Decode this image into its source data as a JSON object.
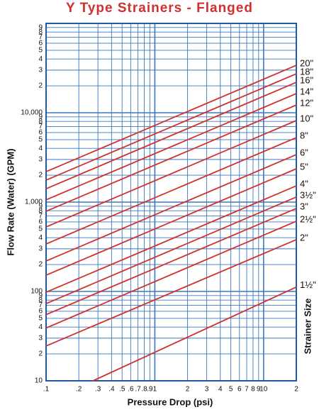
{
  "chart_data": {
    "type": "line",
    "title": "Y Type Strainers - Flanged",
    "xlabel": "Pressure Drop (psi)",
    "ylabel": "Flow Rate (Water) (GPM)",
    "legend_title": "Strainer Size",
    "xscale": "log",
    "yscale": "log",
    "grid": true,
    "grid_color": "#3a78c0",
    "xlim": [
      0.1,
      20
    ],
    "ylim": [
      10,
      100000
    ],
    "xticks": [
      {
        "value": 0.1,
        "label": ".1"
      },
      {
        "value": 0.2,
        "label": ".2"
      },
      {
        "value": 0.3,
        "label": ".3"
      },
      {
        "value": 0.4,
        "label": ".4"
      },
      {
        "value": 0.5,
        "label": ".5"
      },
      {
        "value": 0.6,
        "label": ".6"
      },
      {
        "value": 0.7,
        "label": ".7"
      },
      {
        "value": 0.8,
        "label": ".8"
      },
      {
        "value": 0.9,
        "label": ".9"
      },
      1,
      2,
      3,
      4,
      5,
      6,
      7,
      8,
      9,
      10,
      {
        "value": 20,
        "label": "2"
      }
    ],
    "yticks": [
      10,
      {
        "value": 20,
        "label": "2"
      },
      {
        "value": 30,
        "label": "3"
      },
      {
        "value": 40,
        "label": "4"
      },
      {
        "value": 50,
        "label": "5"
      },
      {
        "value": 60,
        "label": "6"
      },
      {
        "value": 70,
        "label": "7"
      },
      {
        "value": 80,
        "label": "8"
      },
      {
        "value": 90,
        "label": "9"
      },
      100,
      {
        "value": 200,
        "label": "2"
      },
      {
        "value": 300,
        "label": "3"
      },
      {
        "value": 400,
        "label": "4"
      },
      {
        "value": 500,
        "label": "5"
      },
      {
        "value": 600,
        "label": "6"
      },
      {
        "value": 700,
        "label": "7"
      },
      {
        "value": 800,
        "label": "8"
      },
      {
        "value": 900,
        "label": "9"
      },
      {
        "value": 1000,
        "label": "1,000"
      },
      {
        "value": 2000,
        "label": "2"
      },
      {
        "value": 3000,
        "label": "3"
      },
      {
        "value": 4000,
        "label": "4"
      },
      {
        "value": 5000,
        "label": "5"
      },
      {
        "value": 6000,
        "label": "6"
      },
      {
        "value": 7000,
        "label": "7"
      },
      {
        "value": 8000,
        "label": "8"
      },
      {
        "value": 9000,
        "label": "9"
      },
      {
        "value": 10000,
        "label": "10,000"
      },
      {
        "value": 20000,
        "label": "2"
      },
      {
        "value": 30000,
        "label": "3"
      },
      {
        "value": 40000,
        "label": "4"
      },
      {
        "value": 50000,
        "label": "5"
      },
      {
        "value": 60000,
        "label": "6"
      },
      {
        "value": 70000,
        "label": "7"
      },
      {
        "value": 80000,
        "label": "8"
      },
      {
        "value": 90000,
        "label": "9"
      }
    ],
    "series": [
      {
        "name": "20\"",
        "color": "#d0312d",
        "x": [
          0.1,
          20
        ],
        "values": [
          2190,
          34000
        ]
      },
      {
        "name": "18\"",
        "color": "#d0312d",
        "x": [
          0.1,
          20
        ],
        "values": [
          1760,
          27300
        ]
      },
      {
        "name": "16\"",
        "color": "#d0312d",
        "x": [
          0.1,
          20
        ],
        "values": [
          1410,
          21900
        ]
      },
      {
        "name": "14\"",
        "color": "#d0312d",
        "x": [
          0.1,
          20
        ],
        "values": [
          1060,
          16400
        ]
      },
      {
        "name": "12\"",
        "color": "#d0312d",
        "x": [
          0.1,
          20
        ],
        "values": [
          790,
          12200
        ]
      },
      {
        "name": "10\"",
        "color": "#d0312d",
        "x": [
          0.1,
          20
        ],
        "values": [
          527,
          8180
        ]
      },
      {
        "name": "8\"",
        "color": "#d0312d",
        "x": [
          0.1,
          20
        ],
        "values": [
          340,
          5270
        ]
      },
      {
        "name": "6\"",
        "color": "#d0312d",
        "x": [
          0.1,
          20
        ],
        "values": [
          219,
          3400
        ]
      },
      {
        "name": "5\"",
        "color": "#d0312d",
        "x": [
          0.1,
          20
        ],
        "values": [
          152,
          2360
        ]
      },
      {
        "name": "4\"",
        "color": "#d0312d",
        "x": [
          0.1,
          20
        ],
        "values": [
          98,
          1520
        ]
      },
      {
        "name": "3½\"",
        "color": "#d0312d",
        "x": [
          0.1,
          20
        ],
        "values": [
          73,
          1140
        ]
      },
      {
        "name": "3\"",
        "color": "#d0312d",
        "x": [
          0.1,
          20
        ],
        "values": [
          55,
          850
        ]
      },
      {
        "name": "2½\"",
        "color": "#d0312d",
        "x": [
          0.1,
          20
        ],
        "values": [
          39,
          611
        ]
      },
      {
        "name": "2\"",
        "color": "#d0312d",
        "x": [
          0.1,
          20
        ],
        "values": [
          24.5,
          380
        ]
      },
      {
        "name": "1½\"",
        "color": "#d0312d",
        "x": [
          0.27,
          20
        ],
        "values": [
          10,
          112
        ]
      }
    ]
  }
}
